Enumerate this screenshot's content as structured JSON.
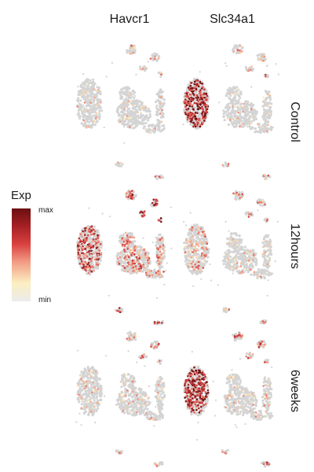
{
  "chart_data": {
    "type": "scatter",
    "title": "",
    "columns": [
      "Havcr1",
      "Slc34a1"
    ],
    "rows": [
      "Control",
      "12hours",
      "6weeks"
    ],
    "legend": {
      "title": "Exp",
      "max_label": "max",
      "min_label": "min",
      "placement": "left"
    },
    "colors": {
      "min": "#ececec",
      "low": "#fbeec0",
      "mid": "#f29d86",
      "high": "#d8403f",
      "max": "#6b0f12",
      "background_cells": "#d4d4d4"
    },
    "panels": [
      {
        "row": "Control",
        "column": "Havcr1",
        "expression": {
          "pt_cluster": 0.1,
          "left_cluster": 0.1,
          "center_blob": 0.1,
          "right_arc": 0.1,
          "top_clusters": 0.35
        }
      },
      {
        "row": "Control",
        "column": "Slc34a1",
        "expression": {
          "pt_cluster": 0.95,
          "left_cluster": 0.2,
          "center_blob": 0.1,
          "right_arc": 0.1,
          "top_clusters": 0.45
        }
      },
      {
        "row": "12hours",
        "column": "Havcr1",
        "expression": {
          "pt_cluster": 0.75,
          "left_cluster": 0.6,
          "center_blob": 0.55,
          "right_arc": 0.45,
          "top_clusters": 0.9
        }
      },
      {
        "row": "12hours",
        "column": "Slc34a1",
        "expression": {
          "pt_cluster": 0.35,
          "left_cluster": 0.15,
          "center_blob": 0.15,
          "right_arc": 0.15,
          "top_clusters": 0.4
        }
      },
      {
        "row": "6weeks",
        "column": "Havcr1",
        "expression": {
          "pt_cluster": 0.15,
          "left_cluster": 0.1,
          "center_blob": 0.15,
          "right_arc": 0.15,
          "top_clusters": 0.45
        }
      },
      {
        "row": "6weeks",
        "column": "Slc34a1",
        "expression": {
          "pt_cluster": 0.95,
          "left_cluster": 0.7,
          "center_blob": 0.15,
          "right_arc": 0.2,
          "top_clusters": 0.6
        }
      }
    ]
  }
}
